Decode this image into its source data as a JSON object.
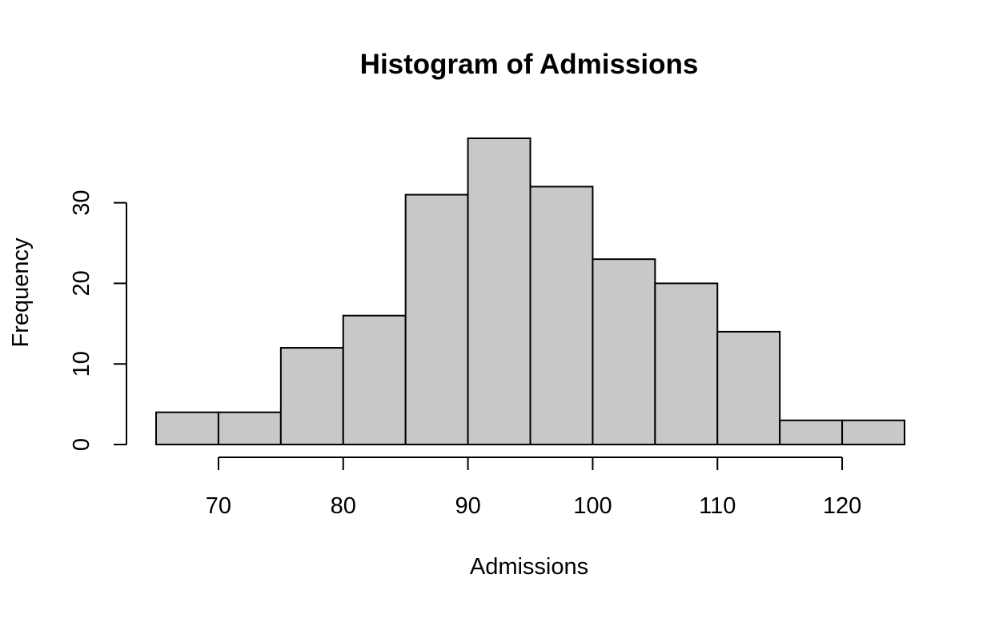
{
  "chart_data": {
    "type": "bar",
    "title": "Histogram of Admissions",
    "xlabel": "Admissions",
    "ylabel": "Frequency",
    "bin_edges": [
      65,
      70,
      75,
      80,
      85,
      90,
      95,
      100,
      105,
      110,
      115,
      120,
      125
    ],
    "values": [
      4,
      4,
      12,
      16,
      31,
      38,
      32,
      23,
      20,
      14,
      3,
      3
    ],
    "x_ticks": [
      70,
      80,
      90,
      100,
      110,
      120
    ],
    "y_ticks": [
      0,
      10,
      20,
      30
    ],
    "xlim": [
      65,
      125
    ],
    "ylim": [
      0,
      38
    ],
    "grid": false,
    "colors": {
      "bar_fill": "#c8c8c8",
      "bar_stroke": "#000000",
      "background": "#ffffff"
    }
  }
}
